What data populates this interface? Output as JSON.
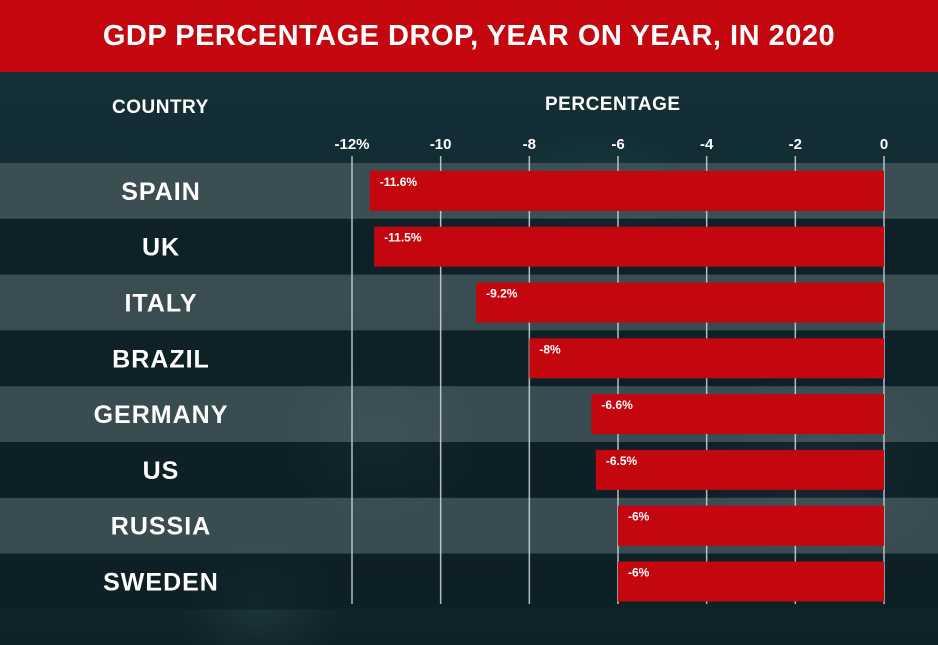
{
  "chart_data": {
    "type": "bar",
    "orientation": "horizontal",
    "title": "GDP PERCENTAGE DROP, YEAR ON YEAR, IN 2020",
    "category_header": "COUNTRY",
    "value_header": "PERCENTAGE",
    "categories": [
      "SPAIN",
      "UK",
      "ITALY",
      "BRAZIL",
      "GERMANY",
      "US",
      "RUSSIA",
      "SWEDEN"
    ],
    "values": [
      -11.6,
      -11.5,
      -9.2,
      -8,
      -6.6,
      -6.5,
      -6,
      -6
    ],
    "value_labels": [
      "-11.6%",
      "-11.5%",
      "-9.2%",
      "-8%",
      "-6.6%",
      "-6.5%",
      "-6%",
      "-6%"
    ],
    "xlim": [
      -12,
      0
    ],
    "ticks": [
      -12,
      -10,
      -8,
      -6,
      -4,
      -2,
      0
    ],
    "tick_labels": [
      "-12%",
      "-10",
      "-8",
      "-6",
      "-4",
      "-2",
      "0"
    ],
    "grid": true
  },
  "colors": {
    "title_bg": "#c4060e",
    "bar": "#c4060e",
    "row_light": "#4a5b60",
    "row_dark": "#0e1f25",
    "grid": "#cfd8da"
  }
}
